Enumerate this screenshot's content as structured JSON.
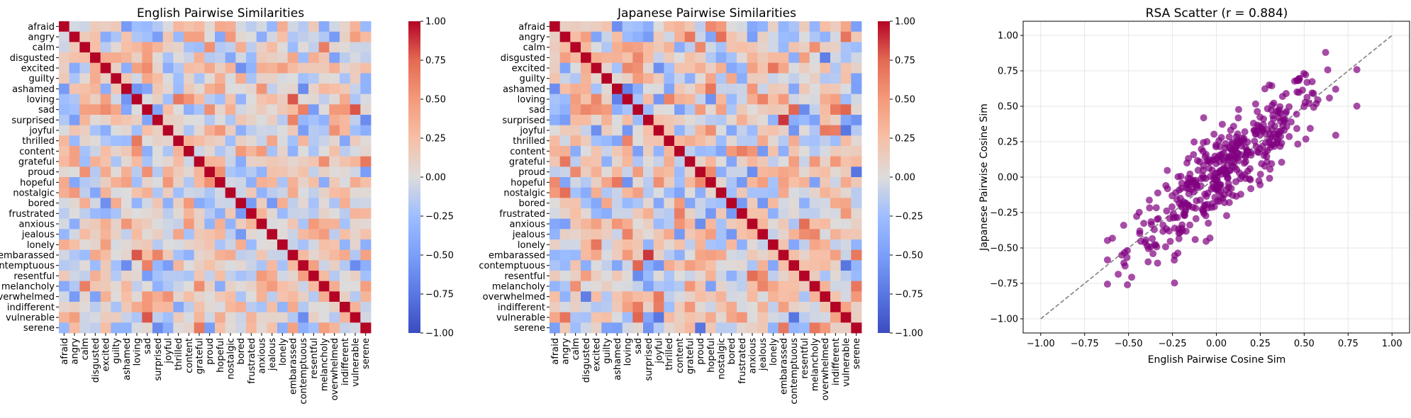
{
  "chart_data": [
    {
      "type": "heatmap",
      "title": "English Pairwise Similarities",
      "labels": [
        "afraid",
        "angry",
        "calm",
        "disgusted",
        "excited",
        "guilty",
        "ashamed",
        "loving",
        "sad",
        "surprised",
        "joyful",
        "thrilled",
        "content",
        "grateful",
        "proud",
        "hopeful",
        "nostalgic",
        "bored",
        "frustrated",
        "anxious",
        "jealous",
        "lonely",
        "embarassed",
        "contemptuous",
        "resentful",
        "melancholy",
        "overwhelmed",
        "indifferent",
        "vulnerable",
        "serene"
      ],
      "colormap": "coolwarm",
      "vmin": -1.0,
      "vmax": 1.0,
      "colorbar_ticks": [
        "1.00",
        "0.75",
        "0.50",
        "0.25",
        "0.00",
        "−0.25",
        "−0.50",
        "−0.75",
        "−1.00"
      ],
      "note_values": "diagonal = 1.0; off-diagonal cosine similarities roughly between -0.6 and 0.75"
    },
    {
      "type": "heatmap",
      "title": "Japanese Pairwise Similarities",
      "labels": [
        "afraid",
        "angry",
        "calm",
        "disgusted",
        "excited",
        "guilty",
        "ashamed",
        "loving",
        "sad",
        "surprised",
        "joyful",
        "thrilled",
        "content",
        "grateful",
        "proud",
        "hopeful",
        "nostalgic",
        "bored",
        "frustrated",
        "anxious",
        "jealous",
        "lonely",
        "embarassed",
        "contemptuous",
        "resentful",
        "melancholy",
        "overwhelmed",
        "indifferent",
        "vulnerable",
        "serene"
      ],
      "colormap": "coolwarm",
      "vmin": -1.0,
      "vmax": 1.0,
      "colorbar_ticks": [
        "1.00",
        "0.75",
        "0.50",
        "0.25",
        "0.00",
        "−0.25",
        "−0.50",
        "−0.75",
        "−1.00"
      ],
      "note_values": "diagonal = 1.0; off-diagonal cosine similarities roughly between -0.75 and 0.9"
    },
    {
      "type": "scatter",
      "title": "RSA Scatter (r = 0.884)",
      "xlabel": "English Pairwise Cosine Sim",
      "ylabel": "Japanese Pairwise Cosine Sim",
      "xlim": [
        -1.1,
        1.1
      ],
      "ylim": [
        -1.1,
        1.1
      ],
      "xticks": [
        "−1.00",
        "−0.75",
        "−0.50",
        "−0.25",
        "0.00",
        "0.25",
        "0.50",
        "0.75",
        "1.00"
      ],
      "yticks": [
        "1.00",
        "0.75",
        "0.50",
        "0.25",
        "0.00",
        "−0.25",
        "−0.50",
        "−0.75",
        "−1.00"
      ],
      "grid": true,
      "point_color": "#800080",
      "reference_line": {
        "x": [
          -1.0,
          1.0
        ],
        "y": [
          -1.0,
          1.0
        ],
        "style": "dashed",
        "color": "#808080"
      },
      "r": 0.884,
      "n_points": 435,
      "x_range_observed": [
        -0.63,
        0.82
      ],
      "y_range_observed": [
        -0.76,
        0.88
      ]
    }
  ]
}
